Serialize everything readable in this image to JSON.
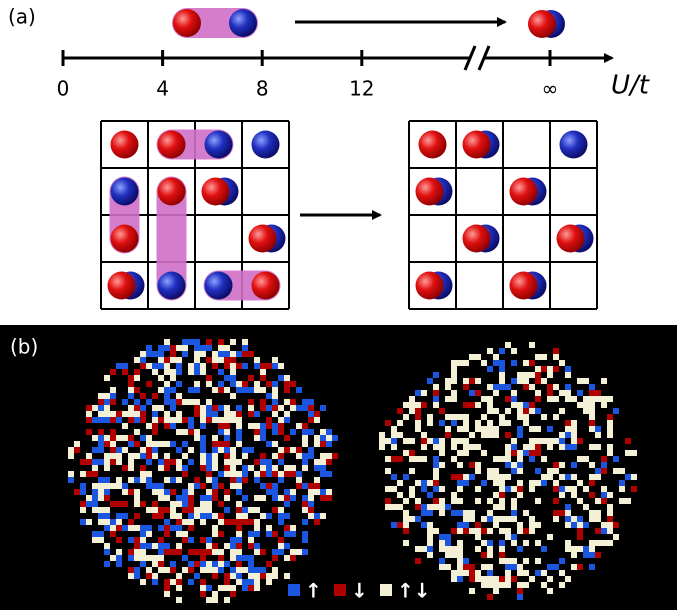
{
  "panel_a": {
    "label": "(a)",
    "axis": {
      "label": "U/t",
      "ticks": [
        0,
        4,
        8,
        12
      ],
      "infinity_label": "∞"
    }
  },
  "panel_b": {
    "label": "(b)",
    "legend": [
      {
        "color": "#1a56e0",
        "label": "↑"
      },
      {
        "color": "#b00000",
        "label": "↓"
      },
      {
        "color": "#f3f0d6",
        "label": "↑↓"
      }
    ]
  }
}
